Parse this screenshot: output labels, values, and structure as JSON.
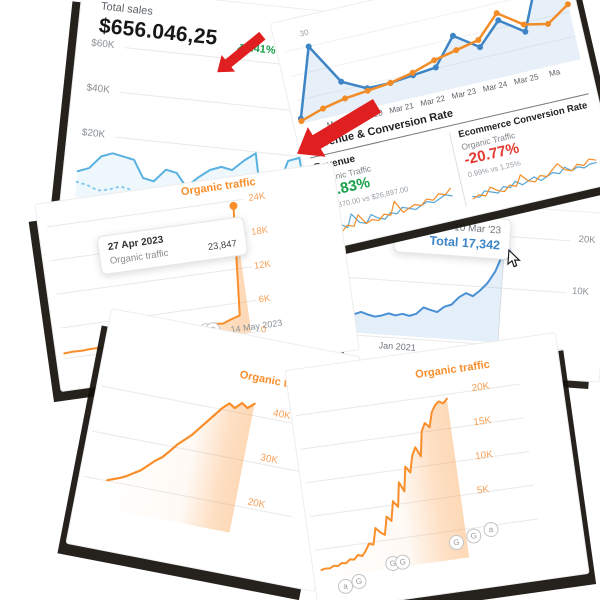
{
  "colors": {
    "accent_orange": "#f98e2b",
    "orange_tick": "#f6a159",
    "sky_blue": "#58b1e0",
    "chart_blue": "#3d85c6",
    "gsc_blue": "#4a90d4",
    "green": "#18a04b",
    "red": "#e5392f",
    "arrow_red": "#e02020",
    "grid": "#e9e9e9",
    "text_dark": "#202124",
    "text_gray": "#8a9095"
  },
  "cards": {
    "total_sales": {
      "title": "Total sales",
      "value": "$656.046,25",
      "change_icon": "↗",
      "change": "241%",
      "yticks": [
        "$60K",
        "$40K",
        "$20K"
      ]
    },
    "revenue_conversion": {
      "peak_label": "30",
      "xticks": [
        "Mar 19",
        "Mar 20",
        "Mar 21",
        "Mar 22",
        "Mar 23",
        "Mar 24",
        "Mar 25",
        "Ma"
      ],
      "section_title": "Revenue & Conversion Rate",
      "left": {
        "title": "Revenue",
        "subtitle": "Organic Traffic",
        "value": "79.83%",
        "compare": "$48,370.00 vs $26,897.00"
      },
      "right": {
        "title": "Ecommerce Conversion Rate",
        "subtitle": "Organic Traffic",
        "value": "-20.77%",
        "compare": "0.99% vs 1.25%"
      }
    },
    "organic_spike": {
      "legend": "Organic traffic",
      "yticks": [
        "24K",
        "18K",
        "12K",
        "6K",
        "0"
      ],
      "xtick": "14 May 2023",
      "tooltip": {
        "date": "27 Apr 2023",
        "label": "Organic traffic",
        "value": "23,847"
      },
      "markers": [
        "G",
        "G",
        "G",
        "G",
        "G",
        "G",
        "G"
      ]
    },
    "total_blue": {
      "yticks": [
        "20K",
        "10K",
        "0"
      ],
      "xticks": [
        "Jan 2021",
        "Jan 2022",
        "Jan 20"
      ],
      "tooltip": {
        "date": "10 Mar '23",
        "label": "Total",
        "value": "17,342"
      }
    },
    "organic_40k": {
      "legend": "Organic traffic",
      "yticks": [
        "40K",
        "30K",
        "20K"
      ]
    },
    "organic_20k": {
      "legend": "Organic traffic",
      "yticks": [
        "20K",
        "15K",
        "10K",
        "5K"
      ],
      "markers": [
        "G",
        "G",
        "G",
        "G",
        "a",
        "a",
        "G"
      ]
    }
  },
  "chart_data": [
    {
      "id": "total-sales-line",
      "type": "line",
      "title": "Total sales",
      "ylim": [
        0,
        70
      ],
      "yticks": [
        "$60K",
        "$40K",
        "$20K"
      ],
      "legend_position": "none",
      "series": [
        {
          "name": "previous period",
          "color": "#8ecdec",
          "width": 2,
          "dash": "1.5,4.5",
          "values": [
            7,
            6,
            4,
            5,
            7,
            6,
            4,
            3,
            5,
            7,
            6,
            4,
            3,
            5,
            6,
            7,
            5,
            4,
            6,
            7,
            5,
            6
          ]
        },
        {
          "name": "current period",
          "color": "#58b1e0",
          "width": 2,
          "fill": "rgba(88,177,224,0.10)",
          "values": [
            12,
            14,
            20,
            22,
            21,
            20,
            12,
            11,
            17,
            16,
            10,
            15,
            19,
            21,
            20,
            25,
            29,
            6,
            8,
            27,
            29,
            11
          ]
        }
      ]
    },
    {
      "id": "revenue-vs-conversion",
      "type": "line",
      "ylim": [
        0,
        40
      ],
      "xticks": [
        "Mar 19",
        "Mar 20",
        "Mar 21",
        "Mar 22",
        "Mar 23",
        "Mar 24",
        "Mar 25",
        "Ma"
      ],
      "peak_label": "30",
      "series": [
        {
          "name": "conversion rate",
          "color": "#3d85c6",
          "width": 2.5,
          "fill": "rgba(61,133,198,0.12)",
          "markers": true,
          "values": [
            2,
            30,
            13,
            8,
            8,
            9,
            10,
            21,
            14,
            23,
            16,
            37,
            33
          ]
        },
        {
          "name": "revenue",
          "color": "#f28c28",
          "width": 2.5,
          "markers": true,
          "values": [
            1,
            4,
            6,
            7,
            8,
            10,
            13,
            15,
            17,
            26,
            19,
            17,
            23
          ]
        }
      ],
      "sparklines": [
        {
          "series": [
            {
              "color": "#58a6d6",
              "width": 1.2,
              "values": [
                2,
                1,
                4,
                2,
                7,
                3,
                2,
                5,
                3,
                2,
                4,
                3,
                5,
                4,
                3,
                4,
                5,
                4,
                5,
                6,
                5
              ]
            },
            {
              "color": "#f28c28",
              "width": 1.2,
              "values": [
                1,
                2,
                1,
                3,
                2,
                6,
                2,
                3,
                2,
                4,
                3,
                8,
                3,
                4,
                5,
                4,
                6,
                5,
                7,
                6,
                8
              ]
            }
          ]
        },
        {
          "series": [
            {
              "color": "#58a6d6",
              "width": 1.2,
              "values": [
                3,
                2,
                4,
                3,
                2,
                4,
                3,
                5,
                3,
                4,
                5,
                3,
                4,
                5,
                4,
                6,
                4,
                5,
                4,
                5,
                5
              ]
            },
            {
              "color": "#f28c28",
              "width": 1.2,
              "values": [
                2,
                3,
                2,
                5,
                3,
                2,
                4,
                3,
                7,
                4,
                3,
                5,
                4,
                6,
                8,
                5,
                4,
                6,
                5,
                7,
                6
              ]
            }
          ]
        }
      ]
    },
    {
      "id": "organic-traffic-spike",
      "type": "line",
      "legend": "Organic traffic",
      "ylim": [
        0,
        26
      ],
      "yticks": [
        "24K",
        "18K",
        "12K",
        "6K",
        "0"
      ],
      "xticks": [
        "14 May 2023"
      ],
      "tooltip_point": {
        "date": "27 Apr 2023",
        "value": 23847
      },
      "series": [
        {
          "name": "Organic traffic",
          "color": "#f98e2b",
          "width": 2,
          "fill": "grad:gradOrange",
          "end_marker": true,
          "values": [
            0.9,
            1,
            0.95,
            1.05,
            1,
            1.1,
            1.05,
            1.2,
            1.1,
            1.3,
            1.2,
            1.45,
            1.35,
            1.6,
            1.5,
            1.85,
            2.1,
            2.5,
            2.3,
            2.9,
            3.4,
            24
          ]
        }
      ]
    },
    {
      "id": "total-organic-blue",
      "type": "line",
      "ylim": [
        0,
        21
      ],
      "yticks": [
        "20K",
        "10K",
        "0"
      ],
      "xticks": [
        "Jan 2021",
        "Jan 2022",
        "Jan 20"
      ],
      "tooltip_point": {
        "date": "10 Mar '23",
        "value": 17342
      },
      "series": [
        {
          "name": "Total",
          "color": "#4a90d4",
          "width": 2,
          "fill": "rgba(74,144,212,0.14)",
          "end_marker": true,
          "end_halo": true,
          "values": [
            4.3,
            4.1,
            4.6,
            5.1,
            4.8,
            3.7,
            3.4,
            3.9,
            3.5,
            4.0,
            3.6,
            3.3,
            3.6,
            4.1,
            3.8,
            4.2,
            3.9,
            4.4,
            5.7,
            5.3,
            5.0,
            6.1,
            6.6,
            8.1,
            9.0,
            8.5,
            9.7,
            11.2,
            13.5,
            17.3
          ]
        }
      ]
    },
    {
      "id": "organic-traffic-40k",
      "type": "line",
      "legend": "Organic traffic",
      "ylim": [
        10,
        46
      ],
      "yticks": [
        "40K",
        "30K",
        "20K"
      ],
      "series": [
        {
          "name": "Organic traffic",
          "color": "#f98e2b",
          "width": 2.2,
          "fill": "grad:gradOrange",
          "values": [
            17,
            17.6,
            18.2,
            19,
            20,
            21,
            22.5,
            24,
            25.2,
            27,
            29,
            30.5,
            32,
            34,
            36,
            38,
            40,
            41.5,
            40.6,
            42.2,
            41.2,
            42.6
          ]
        }
      ]
    },
    {
      "id": "organic-traffic-20k",
      "type": "line",
      "legend": "Organic traffic",
      "ylim": [
        0,
        22
      ],
      "yticks": [
        "20K",
        "15K",
        "10K",
        "5K"
      ],
      "series": [
        {
          "name": "Organic traffic",
          "color": "#f98e2b",
          "width": 2,
          "fill": "grad:gradOrange",
          "values": [
            1,
            1.1,
            1.05,
            1.3,
            1.2,
            1.5,
            1.4,
            1.8,
            1.7,
            2.2,
            2.0,
            2.6,
            3.4,
            3.2,
            5.2,
            4.6,
            4.2,
            6.4,
            5.8,
            8.2,
            7.4,
            10.4,
            9.2,
            12.2,
            11.4,
            13.4,
            14.4,
            13.2,
            16.2,
            17.2,
            16.6,
            18.4,
            19.2,
            19.6,
            19.3,
            19.8
          ]
        }
      ]
    }
  ]
}
